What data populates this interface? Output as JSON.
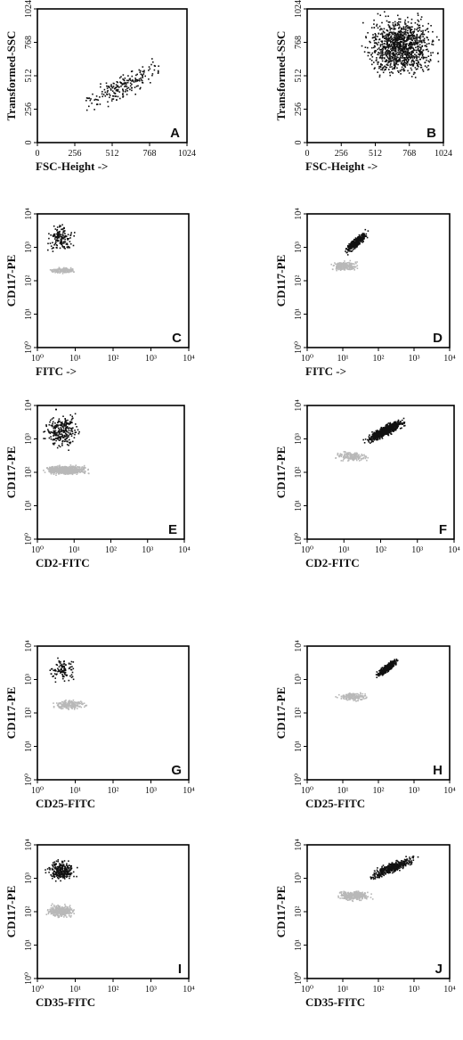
{
  "colors": {
    "dark": "#111111",
    "light": "#b8b8b8",
    "axis": "#000000"
  },
  "chart_data": [
    {
      "panel": "A",
      "type": "scatter",
      "xscale": "linear",
      "yscale": "linear",
      "xlim": [
        0,
        1024
      ],
      "ylim": [
        0,
        1024
      ],
      "xticks": [
        "0",
        "256",
        "512",
        "768",
        "1024"
      ],
      "yticks": [
        "0",
        "256",
        "512",
        "768",
        "1024"
      ],
      "xlabel": "FSC-Height ->",
      "ylabel": "Transformed-SSC",
      "populations": [
        {
          "color": "dark",
          "count": 200,
          "x": [
            250,
            950
          ],
          "y": [
            180,
            700
          ],
          "center": [
            600,
            450
          ],
          "correlated": true
        }
      ]
    },
    {
      "panel": "B",
      "type": "scatter",
      "xscale": "linear",
      "yscale": "linear",
      "xlim": [
        0,
        1024
      ],
      "ylim": [
        0,
        1024
      ],
      "xticks": [
        "0",
        "256",
        "512",
        "768",
        "1024"
      ],
      "yticks": [
        "0",
        "256",
        "512",
        "768",
        "1024"
      ],
      "xlabel": "FSC-Height ->",
      "ylabel": "Transformed-SSC",
      "populations": [
        {
          "color": "dark",
          "count": 1100,
          "x": [
            380,
            1024
          ],
          "y": [
            450,
            1024
          ],
          "center": [
            780,
            760
          ]
        }
      ]
    },
    {
      "panel": "C",
      "type": "scatter",
      "xscale": "log",
      "yscale": "log",
      "xlim": [
        1,
        10000
      ],
      "ylim": [
        1,
        10000
      ],
      "xticks": [
        "10⁰",
        "10¹",
        "10²",
        "10³",
        "10⁴"
      ],
      "yticks": [
        "10⁰",
        "10¹",
        "10²",
        "10³",
        "10⁴"
      ],
      "xlabel": "FITC ->",
      "ylabel": "CD117-PE",
      "populations": [
        {
          "color": "light",
          "count": 160,
          "x": [
            1.8,
            12
          ],
          "y": [
            160,
            260
          ]
        },
        {
          "color": "dark",
          "count": 150,
          "x": [
            1.5,
            12
          ],
          "y": [
            600,
            6000
          ]
        }
      ]
    },
    {
      "panel": "D",
      "type": "scatter",
      "xscale": "log",
      "yscale": "log",
      "xlim": [
        1,
        10000
      ],
      "ylim": [
        1,
        10000
      ],
      "xticks": [
        "10⁰",
        "10¹",
        "10²",
        "10³",
        "10⁴"
      ],
      "yticks": [
        "10⁰",
        "10¹",
        "10²",
        "10³",
        "10⁴"
      ],
      "xlabel": "FITC ->",
      "ylabel": "CD117-PE",
      "populations": [
        {
          "color": "light",
          "count": 220,
          "x": [
            4,
            30
          ],
          "y": [
            180,
            420
          ]
        },
        {
          "color": "dark",
          "count": 320,
          "x": [
            10,
            60
          ],
          "y": [
            500,
            4000
          ],
          "correlated": true
        }
      ]
    },
    {
      "panel": "E",
      "type": "scatter",
      "xscale": "log",
      "yscale": "log",
      "xlim": [
        1,
        10000
      ],
      "ylim": [
        1,
        10000
      ],
      "xticks": [
        "10⁰",
        "10¹",
        "10²",
        "10³",
        "10⁴"
      ],
      "yticks": [
        "10⁰",
        "10¹",
        "10²",
        "10³",
        "10⁴"
      ],
      "xlabel": "CD2-FITC",
      "ylabel": "CD117-PE",
      "populations": [
        {
          "color": "light",
          "count": 700,
          "x": [
            1.2,
            30
          ],
          "y": [
            80,
            170
          ]
        },
        {
          "color": "dark",
          "count": 260,
          "x": [
            1.2,
            20
          ],
          "y": [
            350,
            8000
          ]
        }
      ]
    },
    {
      "panel": "F",
      "type": "scatter",
      "xscale": "log",
      "yscale": "log",
      "xlim": [
        1,
        10000
      ],
      "ylim": [
        1,
        10000
      ],
      "xticks": [
        "10⁰",
        "10¹",
        "10²",
        "10³",
        "10⁴"
      ],
      "yticks": [
        "10⁰",
        "10¹",
        "10²",
        "10³",
        "10⁴"
      ],
      "xlabel": "CD2-FITC",
      "ylabel": "CD117-PE",
      "populations": [
        {
          "color": "light",
          "count": 170,
          "x": [
            5,
            60
          ],
          "y": [
            200,
            450
          ]
        },
        {
          "color": "dark",
          "count": 650,
          "x": [
            30,
            600
          ],
          "y": [
            600,
            5000
          ],
          "correlated": true
        }
      ]
    },
    {
      "panel": "G",
      "type": "scatter",
      "xscale": "log",
      "yscale": "log",
      "xlim": [
        1,
        10000
      ],
      "ylim": [
        1,
        10000
      ],
      "xticks": [
        "10⁰",
        "10¹",
        "10²",
        "10³",
        "10⁴"
      ],
      "yticks": [
        "10⁰",
        "10¹",
        "10²",
        "10³",
        "10⁴"
      ],
      "xlabel": "CD25-FITC",
      "ylabel": "CD117-PE",
      "populations": [
        {
          "color": "light",
          "count": 220,
          "x": [
            2,
            25
          ],
          "y": [
            120,
            260
          ]
        },
        {
          "color": "dark",
          "count": 100,
          "x": [
            1.5,
            15
          ],
          "y": [
            700,
            5000
          ]
        }
      ]
    },
    {
      "panel": "H",
      "type": "scatter",
      "xscale": "log",
      "yscale": "log",
      "xlim": [
        1,
        10000
      ],
      "ylim": [
        1,
        10000
      ],
      "xticks": [
        "10⁰",
        "10¹",
        "10²",
        "10³",
        "10⁴"
      ],
      "yticks": [
        "10⁰",
        "10¹",
        "10²",
        "10³",
        "10⁴"
      ],
      "xlabel": "CD25-FITC",
      "ylabel": "CD117-PE",
      "populations": [
        {
          "color": "light",
          "count": 170,
          "x": [
            6,
            60
          ],
          "y": [
            220,
            420
          ]
        },
        {
          "color": "dark",
          "count": 380,
          "x": [
            80,
            400
          ],
          "y": [
            1000,
            5000
          ],
          "correlated": true
        }
      ]
    },
    {
      "panel": "I",
      "type": "scatter",
      "xscale": "log",
      "yscale": "log",
      "xlim": [
        1,
        10000
      ],
      "ylim": [
        1,
        10000
      ],
      "xticks": [
        "10⁰",
        "10¹",
        "10²",
        "10³",
        "10⁴"
      ],
      "yticks": [
        "10⁰",
        "10¹",
        "10²",
        "10³",
        "10⁴"
      ],
      "xlabel": "CD35-FITC",
      "ylabel": "CD117-PE",
      "populations": [
        {
          "color": "light",
          "count": 320,
          "x": [
            1.5,
            12
          ],
          "y": [
            60,
            180
          ]
        },
        {
          "color": "dark",
          "count": 260,
          "x": [
            1.5,
            12
          ],
          "y": [
            700,
            4000
          ]
        }
      ]
    },
    {
      "panel": "J",
      "type": "scatter",
      "xscale": "log",
      "yscale": "log",
      "xlim": [
        1,
        10000
      ],
      "ylim": [
        1,
        10000
      ],
      "xticks": [
        "10⁰",
        "10¹",
        "10²",
        "10³",
        "10⁴"
      ],
      "yticks": [
        "10⁰",
        "10¹",
        "10²",
        "10³",
        "10⁴"
      ],
      "xlabel": "CD35-FITC",
      "ylabel": "CD117-PE",
      "populations": [
        {
          "color": "light",
          "count": 350,
          "x": [
            6,
            80
          ],
          "y": [
            200,
            450
          ]
        },
        {
          "color": "dark",
          "count": 420,
          "x": [
            40,
            1500
          ],
          "y": [
            700,
            6000
          ],
          "correlated": true
        }
      ]
    }
  ]
}
